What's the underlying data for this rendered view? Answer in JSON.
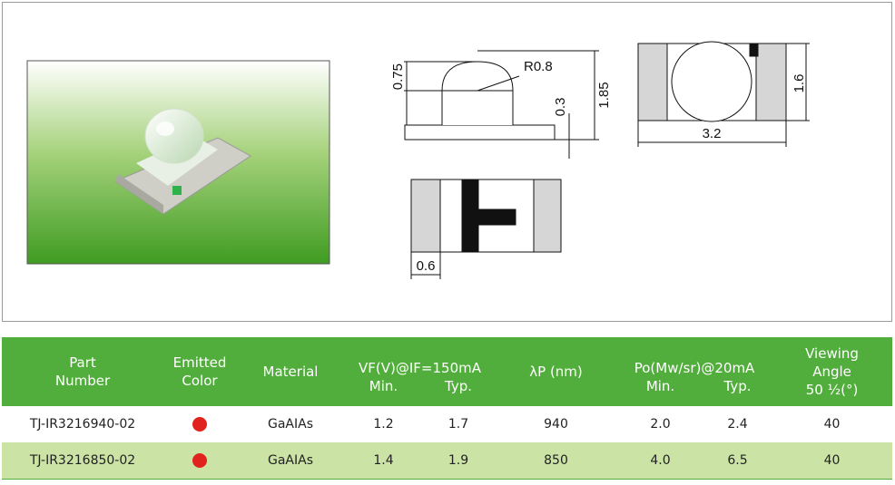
{
  "drawing": {
    "dimensions": [
      "0.75",
      "R0.8",
      "1.85",
      "0.3",
      "1.6",
      "3.2",
      "0.6"
    ]
  },
  "table": {
    "headers": {
      "part_number": [
        "Part",
        "Number"
      ],
      "emitted_color": [
        "Emitted",
        "Color"
      ],
      "material": "Material",
      "vf": "VF(V)@IF=150mA",
      "vf_sub": [
        "Min.",
        "Typ."
      ],
      "wavelength": "λP (nm)",
      "po": "Po(Mw/sr)@20mA",
      "po_sub": [
        "Min.",
        "Typ."
      ],
      "viewing_angle": [
        "Viewing",
        "Angle",
        "50 ½(°)"
      ]
    },
    "rows": [
      {
        "part": "TJ-IR3216940-02",
        "color": "#e0231c",
        "material": "GaAIAs",
        "vf_min": "1.2",
        "vf_typ": "1.7",
        "wavelength": "940",
        "po_min": "2.0",
        "po_typ": "2.4",
        "angle": "40"
      },
      {
        "part": "TJ-IR3216850-02",
        "color": "#e0231c",
        "material": "GaAIAs",
        "vf_min": "1.4",
        "vf_typ": "1.9",
        "wavelength": "850",
        "po_min": "4.0",
        "po_typ": "6.5",
        "angle": "40"
      }
    ]
  }
}
